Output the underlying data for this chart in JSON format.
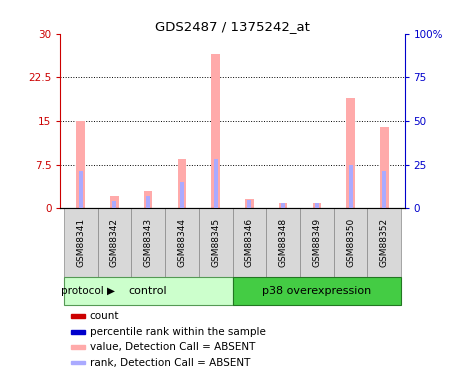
{
  "title": "GDS2487 / 1375242_at",
  "samples": [
    "GSM88341",
    "GSM88342",
    "GSM88343",
    "GSM88344",
    "GSM88345",
    "GSM88346",
    "GSM88348",
    "GSM88349",
    "GSM88350",
    "GSM88352"
  ],
  "groups": [
    {
      "name": "control",
      "color": "#ccffcc",
      "dark_color": "#44bb44",
      "indices": [
        0,
        1,
        2,
        3,
        4
      ]
    },
    {
      "name": "p38 overexpression",
      "color": "#44cc44",
      "dark_color": "#008800",
      "indices": [
        5,
        6,
        7,
        8,
        9
      ]
    }
  ],
  "pink_values": [
    15.0,
    2.2,
    3.0,
    8.5,
    26.5,
    1.6,
    0.9,
    0.95,
    19.0,
    14.0
  ],
  "blue_rank_values": [
    6.5,
    1.3,
    2.2,
    4.5,
    8.5,
    1.5,
    0.85,
    0.9,
    7.5,
    6.5
  ],
  "ylim_left": [
    0,
    30
  ],
  "ylim_right": [
    0,
    100
  ],
  "yticks_left": [
    0,
    7.5,
    15,
    22.5,
    30
  ],
  "yticks_right": [
    0,
    25,
    50,
    75,
    100
  ],
  "ytick_labels_left": [
    "0",
    "7.5",
    "15",
    "22.5",
    "30"
  ],
  "ytick_labels_right": [
    "0",
    "25",
    "50",
    "75",
    "100%"
  ],
  "left_axis_color": "#cc0000",
  "right_axis_color": "#0000cc",
  "pink_bar_width": 0.25,
  "blue_bar_width": 0.12,
  "pink_color": "#ffaaaa",
  "blue_color": "#aaaaff",
  "protocol_label": "protocol",
  "background_color": "#ffffff",
  "grid_color": "#000000",
  "legend_items": [
    {
      "color": "#cc0000",
      "label": "count"
    },
    {
      "color": "#0000cc",
      "label": "percentile rank within the sample"
    },
    {
      "color": "#ffaaaa",
      "label": "value, Detection Call = ABSENT"
    },
    {
      "color": "#aaaaff",
      "label": "rank, Detection Call = ABSENT"
    }
  ]
}
